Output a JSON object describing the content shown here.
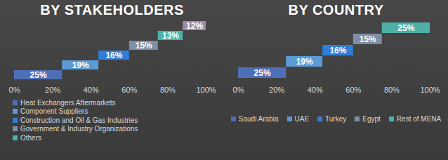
{
  "chart_data": [
    {
      "type": "bar",
      "orientation": "horizontal",
      "stacked": true,
      "title": "BY STAKEHOLDERS",
      "categories": [
        "Heat Exchangers Aftermarkets",
        "Component Suppliers",
        "Construction and Oil & Gas Industries",
        "Government & Industry Organizations",
        "Others",
        null
      ],
      "values": [
        25,
        19,
        16,
        15,
        13,
        12
      ],
      "value_labels": [
        "25%",
        "19%",
        "16%",
        "15%",
        "13%",
        "12%"
      ],
      "colors": [
        "#4e6fb8",
        "#5a9bd5",
        "#2f7ed8",
        "#7d8ea5",
        "#45b5aa",
        "#a08aa8"
      ],
      "xlim": [
        0,
        100
      ],
      "xticks": [
        {
          "value": 0,
          "label": "0%"
        },
        {
          "value": 20,
          "label": "20%"
        },
        {
          "value": 40,
          "label": "40%"
        },
        {
          "value": 60,
          "label": "60%"
        },
        {
          "value": 80,
          "label": "80%"
        },
        {
          "value": 100,
          "label": "100%"
        }
      ],
      "data_labels": true,
      "grid": false,
      "legend": "bottom",
      "tick_labels": "x"
    },
    {
      "type": "bar",
      "orientation": "horizontal",
      "stacked": true,
      "title": "BY COUNTRY",
      "categories": [
        "Saudi Arabia",
        "UAE",
        "Turkey",
        "Egypt",
        "Rest of MENA"
      ],
      "values": [
        25,
        19,
        16,
        15,
        25
      ],
      "value_labels": [
        "25%",
        "19%",
        "16%",
        "15%",
        "25%"
      ],
      "colors": [
        "#4e6fb8",
        "#5a9bd5",
        "#2f7ed8",
        "#7d8ea5",
        "#4fb0a8"
      ],
      "xlim": [
        0,
        100
      ],
      "xticks": [
        {
          "value": 0,
          "label": "0%"
        },
        {
          "value": 20,
          "label": "20%"
        },
        {
          "value": 40,
          "label": "40%"
        },
        {
          "value": 60,
          "label": "60%"
        },
        {
          "value": 80,
          "label": "80%"
        },
        {
          "value": 100,
          "label": "100%"
        }
      ],
      "data_labels": true,
      "grid": false,
      "legend": "bottom",
      "tick_labels": "x"
    }
  ]
}
